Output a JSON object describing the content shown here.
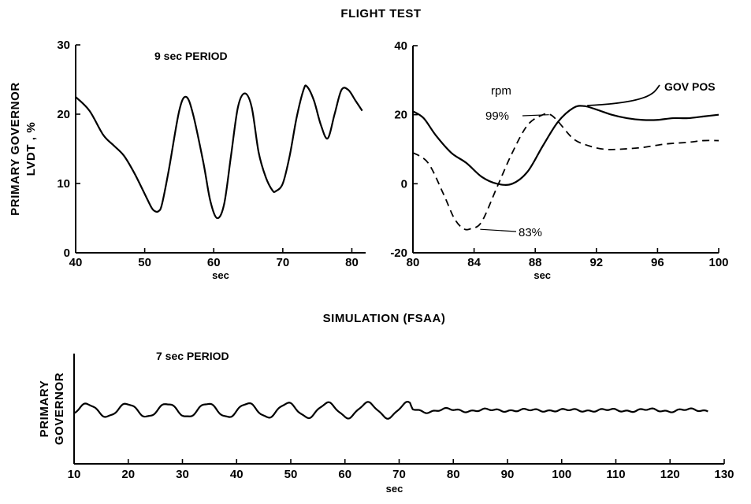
{
  "figure": {
    "title_top": "FLIGHT TEST",
    "title_bottom": "SIMULATION (FSAA)"
  },
  "chart_data": [
    {
      "type": "line",
      "annotation": "9 sec PERIOD",
      "xlabel": "sec",
      "ylabel_line1": "PRIMARY GOVERNOR",
      "ylabel_line2": "LVDT , %",
      "xlim": [
        40,
        82
      ],
      "ylim": [
        0,
        30
      ],
      "xticks": [
        40,
        50,
        60,
        70,
        80
      ],
      "yticks": [
        0,
        10,
        20,
        30
      ],
      "grid": false,
      "series": [
        {
          "style": "solid",
          "x": [
            40,
            42,
            44,
            45.5,
            47,
            48.5,
            50,
            51,
            51.5,
            52,
            52.5,
            53.5,
            55,
            56,
            57,
            58.5,
            59.5,
            60.5,
            61.5,
            62.5,
            63.5,
            64.5,
            65.5,
            66.5,
            67.5,
            68.5,
            69,
            70,
            71,
            72,
            73,
            73.5,
            74.5,
            75.5,
            76.5,
            77.5,
            78.5,
            79.5,
            80.5,
            81.5
          ],
          "y": [
            22.5,
            20.5,
            17,
            15.5,
            14,
            11.5,
            8.5,
            6.5,
            6,
            6,
            7,
            12,
            20.5,
            22.5,
            20,
            13,
            7.5,
            5,
            7,
            14,
            21,
            23,
            21,
            14.5,
            11,
            9,
            8.9,
            10,
            14,
            19.5,
            23.5,
            24,
            22,
            18.5,
            16.5,
            20,
            23.5,
            23.5,
            22,
            20.5
          ]
        }
      ]
    },
    {
      "type": "line",
      "xlabel": "sec",
      "xlim": [
        80,
        100
      ],
      "ylim": [
        -20,
        40
      ],
      "xticks": [
        80,
        84,
        88,
        92,
        96,
        100
      ],
      "yticks": [
        -20,
        0,
        20,
        40
      ],
      "grid": false,
      "annotations": [
        "rpm",
        "99%",
        "83%"
      ],
      "series": [
        {
          "name": "GOV POS",
          "style": "solid",
          "x": [
            80,
            80.7,
            81.5,
            82.5,
            83.5,
            84.5,
            85.5,
            86.5,
            87.5,
            88.5,
            89.5,
            90.5,
            91.2,
            92,
            93,
            94,
            95,
            96,
            97,
            98,
            99,
            100
          ],
          "y": [
            21,
            19,
            14,
            9,
            6,
            2,
            0,
            0,
            3.5,
            11,
            18,
            22,
            22.5,
            21.5,
            20,
            19,
            18.5,
            18.5,
            19,
            19,
            19.5,
            20
          ]
        },
        {
          "style": "dashed",
          "x": [
            80,
            81,
            82,
            82.7,
            83.3,
            83.8,
            84.5,
            85.5,
            86.5,
            87.5,
            88.5,
            89,
            89.5,
            90.5,
            91.5,
            92.5,
            93.5,
            95,
            96.5,
            98,
            99,
            100
          ],
          "y": [
            9,
            6,
            -3,
            -10,
            -13,
            -13,
            -11,
            -1,
            9,
            17,
            20,
            20,
            18,
            13,
            11,
            10,
            10,
            10.5,
            11.5,
            12,
            12.5,
            12.5
          ]
        }
      ]
    },
    {
      "type": "line",
      "annotation": "7 sec PERIOD",
      "xlabel": "sec",
      "ylabel_line1": "PRIMARY",
      "ylabel_line2": "GOVERNOR",
      "xlim": [
        10,
        130
      ],
      "xticks": [
        10,
        20,
        30,
        40,
        50,
        60,
        70,
        80,
        90,
        100,
        110,
        120,
        130
      ],
      "yticks": [],
      "grid": false,
      "series": [
        {
          "style": "solid",
          "period": 7.4,
          "x": [
            10,
            72,
            72.5,
            80,
            90,
            100,
            110,
            120,
            127
          ],
          "amplitude": [
            0.9,
            1.1,
            0.35,
            0.2,
            0.12,
            0.12,
            0.15,
            0.2,
            0.15
          ]
        }
      ]
    }
  ]
}
